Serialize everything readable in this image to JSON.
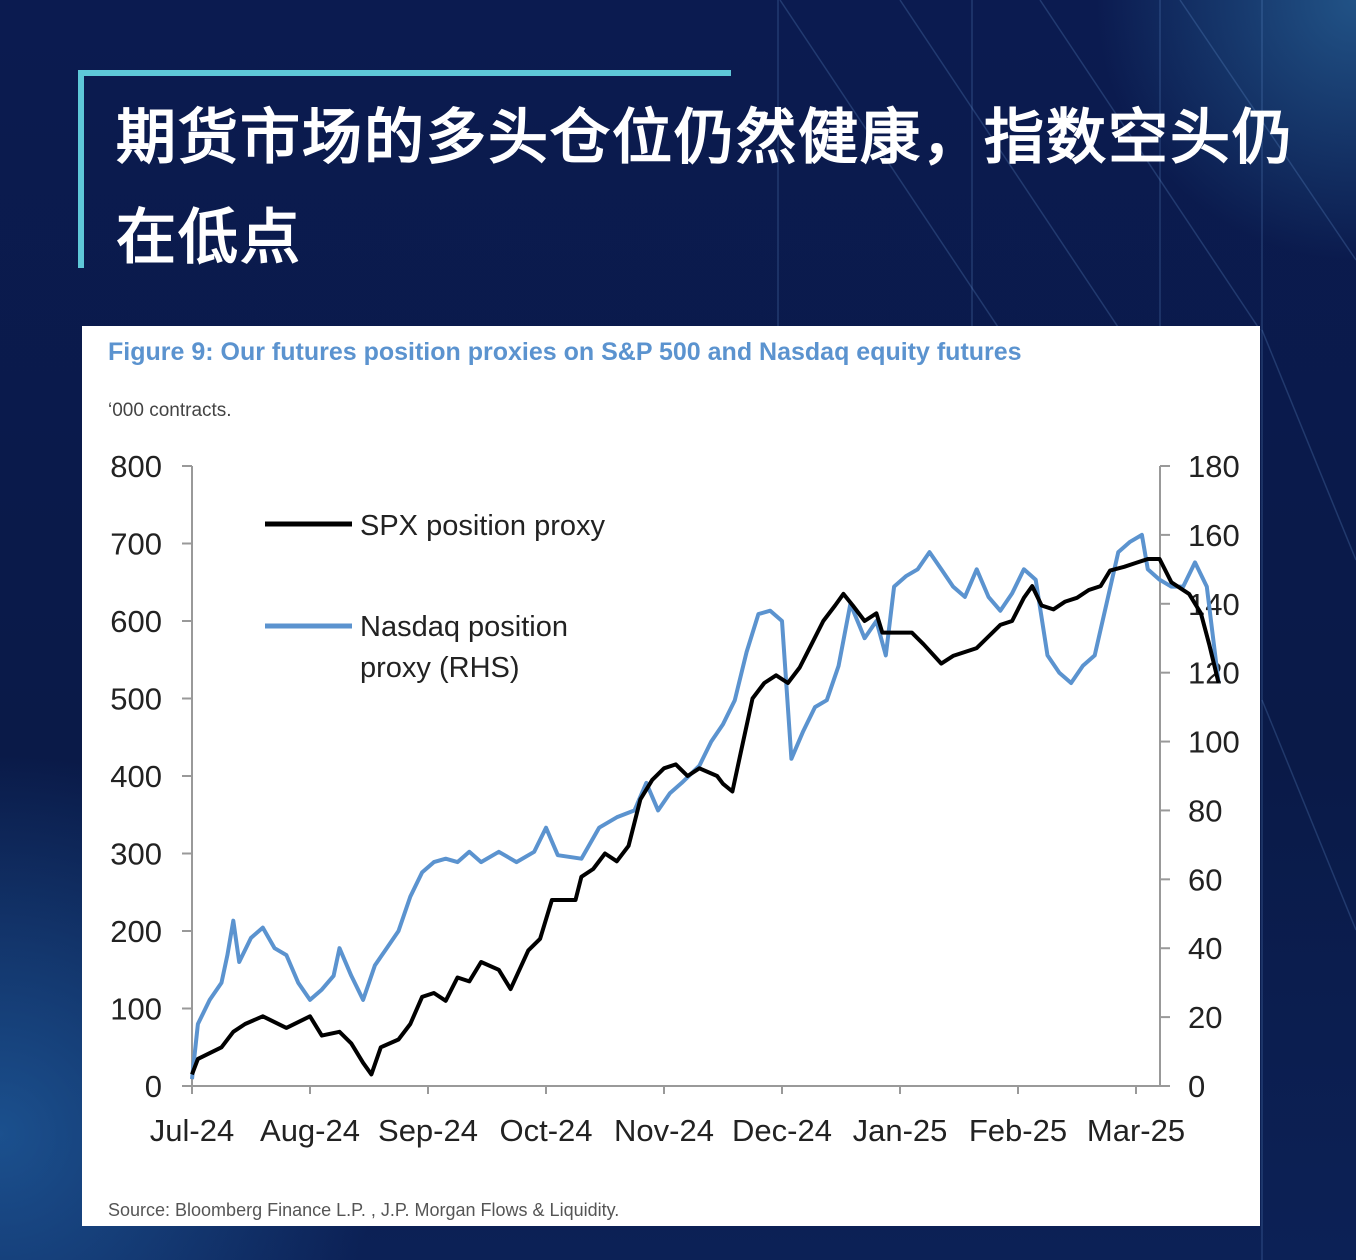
{
  "page": {
    "heading": "期货市场的多头仓位仍然健康，指数空头仍在低点"
  },
  "chart_data": {
    "type": "line",
    "title": "Figure 9: Our futures position proxies on S&P 500 and Nasdaq equity futures",
    "unit_label": "‘000 contracts.",
    "source": "Source: Bloomberg Finance L.P. , J.P. Morgan Flows & Liquidity.",
    "x_ticks": [
      "Jul-24",
      "Aug-24",
      "Sep-24",
      "Oct-24",
      "Nov-24",
      "Dec-24",
      "Jan-25",
      "Feb-25",
      "Mar-25"
    ],
    "y_left": {
      "range": [
        0,
        800
      ],
      "ticks": [
        "0",
        "100",
        "200",
        "300",
        "400",
        "500",
        "600",
        "700",
        "800"
      ]
    },
    "y_right": {
      "range": [
        0,
        180
      ],
      "ticks": [
        "0",
        "20",
        "40",
        "60",
        "80",
        "100",
        "120",
        "140",
        "160",
        "180"
      ]
    },
    "legend_position": "top-left",
    "colors": {
      "spx": "#000000",
      "nasdaq": "#5b93cf"
    },
    "series": [
      {
        "name": "SPX position proxy",
        "axis": "left",
        "points": [
          [
            0,
            15
          ],
          [
            0.05,
            35
          ],
          [
            0.25,
            50
          ],
          [
            0.35,
            70
          ],
          [
            0.45,
            80
          ],
          [
            0.6,
            90
          ],
          [
            0.8,
            75
          ],
          [
            1.0,
            90
          ],
          [
            1.1,
            65
          ],
          [
            1.25,
            70
          ],
          [
            1.35,
            55
          ],
          [
            1.45,
            30
          ],
          [
            1.52,
            15
          ],
          [
            1.6,
            50
          ],
          [
            1.75,
            60
          ],
          [
            1.85,
            80
          ],
          [
            1.95,
            115
          ],
          [
            2.05,
            120
          ],
          [
            2.15,
            110
          ],
          [
            2.25,
            140
          ],
          [
            2.35,
            135
          ],
          [
            2.45,
            160
          ],
          [
            2.6,
            150
          ],
          [
            2.7,
            125
          ],
          [
            2.85,
            175
          ],
          [
            2.95,
            190
          ],
          [
            3.05,
            240
          ],
          [
            3.25,
            240
          ],
          [
            3.3,
            270
          ],
          [
            3.4,
            280
          ],
          [
            3.5,
            300
          ],
          [
            3.6,
            290
          ],
          [
            3.7,
            310
          ],
          [
            3.8,
            370
          ],
          [
            3.9,
            395
          ],
          [
            4.0,
            410
          ],
          [
            4.1,
            415
          ],
          [
            4.2,
            400
          ],
          [
            4.3,
            410
          ],
          [
            4.45,
            400
          ],
          [
            4.5,
            390
          ],
          [
            4.58,
            380
          ],
          [
            4.65,
            430
          ],
          [
            4.75,
            500
          ],
          [
            4.85,
            520
          ],
          [
            4.95,
            530
          ],
          [
            5.05,
            520
          ],
          [
            5.15,
            540
          ],
          [
            5.25,
            570
          ],
          [
            5.35,
            600
          ],
          [
            5.45,
            620
          ],
          [
            5.52,
            635
          ],
          [
            5.6,
            620
          ],
          [
            5.7,
            600
          ],
          [
            5.8,
            610
          ],
          [
            5.85,
            585
          ],
          [
            6.0,
            585
          ],
          [
            6.1,
            585
          ],
          [
            6.2,
            570
          ],
          [
            6.35,
            545
          ],
          [
            6.45,
            555
          ],
          [
            6.55,
            560
          ],
          [
            6.65,
            565
          ],
          [
            6.75,
            580
          ],
          [
            6.85,
            595
          ],
          [
            6.95,
            600
          ],
          [
            7.05,
            630
          ],
          [
            7.12,
            645
          ],
          [
            7.2,
            620
          ],
          [
            7.3,
            615
          ],
          [
            7.4,
            625
          ],
          [
            7.5,
            630
          ],
          [
            7.6,
            640
          ],
          [
            7.7,
            645
          ],
          [
            7.78,
            665
          ],
          [
            7.9,
            670
          ],
          [
            8.0,
            675
          ],
          [
            8.1,
            680
          ],
          [
            8.2,
            680
          ],
          [
            8.3,
            650
          ],
          [
            8.45,
            635
          ],
          [
            8.55,
            610
          ],
          [
            8.62,
            570
          ],
          [
            8.7,
            520
          ]
        ]
      },
      {
        "name": "Nasdaq position proxy (RHS)",
        "axis": "right",
        "points": [
          [
            0,
            2
          ],
          [
            0.05,
            18
          ],
          [
            0.15,
            25
          ],
          [
            0.25,
            30
          ],
          [
            0.3,
            38
          ],
          [
            0.35,
            48
          ],
          [
            0.4,
            36
          ],
          [
            0.5,
            43
          ],
          [
            0.6,
            46
          ],
          [
            0.7,
            40
          ],
          [
            0.8,
            38
          ],
          [
            0.9,
            30
          ],
          [
            1.0,
            25
          ],
          [
            1.1,
            28
          ],
          [
            1.2,
            32
          ],
          [
            1.25,
            40
          ],
          [
            1.35,
            32
          ],
          [
            1.45,
            25
          ],
          [
            1.55,
            35
          ],
          [
            1.65,
            40
          ],
          [
            1.75,
            45
          ],
          [
            1.85,
            55
          ],
          [
            1.95,
            62
          ],
          [
            2.05,
            65
          ],
          [
            2.15,
            66
          ],
          [
            2.25,
            65
          ],
          [
            2.35,
            68
          ],
          [
            2.45,
            65
          ],
          [
            2.6,
            68
          ],
          [
            2.75,
            65
          ],
          [
            2.9,
            68
          ],
          [
            3.0,
            75
          ],
          [
            3.1,
            67
          ],
          [
            3.3,
            66
          ],
          [
            3.45,
            75
          ],
          [
            3.6,
            78
          ],
          [
            3.75,
            80
          ],
          [
            3.85,
            88
          ],
          [
            3.95,
            80
          ],
          [
            4.05,
            85
          ],
          [
            4.15,
            88
          ],
          [
            4.3,
            93
          ],
          [
            4.4,
            100
          ],
          [
            4.5,
            105
          ],
          [
            4.6,
            112
          ],
          [
            4.7,
            126
          ],
          [
            4.8,
            137
          ],
          [
            4.9,
            138
          ],
          [
            5.0,
            135
          ],
          [
            5.08,
            95
          ],
          [
            5.18,
            103
          ],
          [
            5.28,
            110
          ],
          [
            5.38,
            112
          ],
          [
            5.48,
            122
          ],
          [
            5.58,
            140
          ],
          [
            5.7,
            130
          ],
          [
            5.8,
            135
          ],
          [
            5.88,
            125
          ],
          [
            5.95,
            145
          ],
          [
            6.05,
            148
          ],
          [
            6.15,
            150
          ],
          [
            6.25,
            155
          ],
          [
            6.35,
            150
          ],
          [
            6.45,
            145
          ],
          [
            6.55,
            142
          ],
          [
            6.65,
            150
          ],
          [
            6.75,
            142
          ],
          [
            6.85,
            138
          ],
          [
            6.95,
            143
          ],
          [
            7.05,
            150
          ],
          [
            7.15,
            147
          ],
          [
            7.25,
            125
          ],
          [
            7.35,
            120
          ],
          [
            7.45,
            117
          ],
          [
            7.55,
            122
          ],
          [
            7.65,
            125
          ],
          [
            7.75,
            140
          ],
          [
            7.85,
            155
          ],
          [
            7.95,
            158
          ],
          [
            8.05,
            160
          ],
          [
            8.1,
            150
          ],
          [
            8.2,
            147
          ],
          [
            8.3,
            145
          ],
          [
            8.4,
            145
          ],
          [
            8.5,
            152
          ],
          [
            8.6,
            145
          ],
          [
            8.7,
            117
          ]
        ]
      }
    ]
  }
}
